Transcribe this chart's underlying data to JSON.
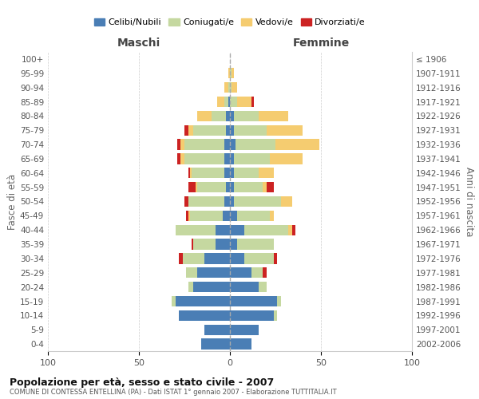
{
  "age_groups": [
    "0-4",
    "5-9",
    "10-14",
    "15-19",
    "20-24",
    "25-29",
    "30-34",
    "35-39",
    "40-44",
    "45-49",
    "50-54",
    "55-59",
    "60-64",
    "65-69",
    "70-74",
    "75-79",
    "80-84",
    "85-89",
    "90-94",
    "95-99",
    "100+"
  ],
  "birth_years": [
    "2002-2006",
    "1997-2001",
    "1992-1996",
    "1987-1991",
    "1982-1986",
    "1977-1981",
    "1972-1976",
    "1967-1971",
    "1962-1966",
    "1957-1961",
    "1952-1956",
    "1947-1951",
    "1942-1946",
    "1937-1941",
    "1932-1936",
    "1927-1931",
    "1922-1926",
    "1917-1921",
    "1912-1916",
    "1907-1911",
    "≤ 1906"
  ],
  "colors": {
    "celibi": "#4a7eb5",
    "coniugati": "#c5d8a0",
    "vedovi": "#f5cc70",
    "divorziati": "#cc2222"
  },
  "maschi": {
    "celibi": [
      16,
      14,
      28,
      30,
      20,
      18,
      14,
      8,
      8,
      4,
      3,
      2,
      3,
      3,
      3,
      2,
      2,
      1,
      0,
      0,
      0
    ],
    "coniugati": [
      0,
      0,
      0,
      2,
      3,
      6,
      12,
      12,
      22,
      18,
      20,
      16,
      18,
      22,
      22,
      18,
      8,
      2,
      1,
      0,
      0
    ],
    "vedovi": [
      0,
      0,
      0,
      0,
      0,
      0,
      0,
      0,
      0,
      1,
      0,
      1,
      1,
      2,
      2,
      3,
      8,
      4,
      2,
      1,
      0
    ],
    "divorziati": [
      0,
      0,
      0,
      0,
      0,
      0,
      2,
      1,
      0,
      1,
      2,
      4,
      1,
      2,
      2,
      2,
      0,
      0,
      0,
      0,
      0
    ]
  },
  "femmine": {
    "nubili": [
      12,
      16,
      24,
      26,
      16,
      12,
      8,
      4,
      8,
      4,
      2,
      2,
      2,
      2,
      3,
      2,
      2,
      0,
      0,
      0,
      0
    ],
    "coniugate": [
      0,
      0,
      2,
      2,
      4,
      6,
      16,
      20,
      24,
      18,
      26,
      16,
      14,
      20,
      22,
      18,
      14,
      4,
      1,
      1,
      0
    ],
    "vedove": [
      0,
      0,
      0,
      0,
      0,
      0,
      0,
      0,
      2,
      2,
      6,
      2,
      8,
      18,
      24,
      20,
      16,
      8,
      3,
      1,
      0
    ],
    "divorziate": [
      0,
      0,
      0,
      0,
      0,
      2,
      2,
      0,
      2,
      0,
      0,
      4,
      0,
      0,
      0,
      0,
      0,
      1,
      0,
      0,
      0
    ]
  },
  "title": "Popolazione per età, sesso e stato civile - 2007",
  "subtitle": "COMUNE DI CONTESSA ENTELLINA (PA) - Dati ISTAT 1° gennaio 2007 - Elaborazione TUTTITALIA.IT",
  "xlabel_left": "Maschi",
  "xlabel_right": "Femmine",
  "ylabel_left": "Fasce di età",
  "ylabel_right": "Anni di nascita",
  "xlim": 100,
  "legend_labels": [
    "Celibi/Nubili",
    "Coniugati/e",
    "Vedovi/e",
    "Divorziati/e"
  ]
}
